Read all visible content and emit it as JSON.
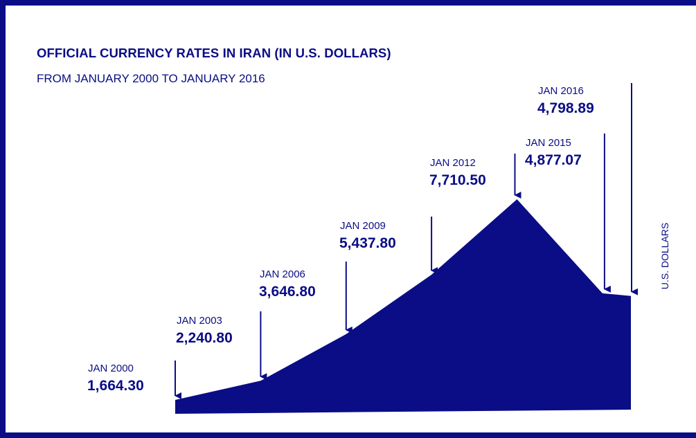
{
  "title": "OFFICIAL CURRENCY RATES IN IRAN (IN U.S. DOLLARS)",
  "subtitle": "FROM JANUARY 2000 TO JANUARY 2016",
  "colors": {
    "fill": "#0a0d85",
    "text": "#0a0d85",
    "border": "#0a0d85"
  },
  "chart_data": {
    "type": "area",
    "title": "OFFICIAL CURRENCY RATES IN IRAN (IN U.S. DOLLARS)",
    "subtitle": "FROM JANUARY 2000 TO JANUARY 2016",
    "ylabel": "U.S. DOLLARS",
    "x": [
      "2000-01",
      "2003-01",
      "2006-01",
      "2009-01",
      "2012-01",
      "2015-01",
      "2016-01"
    ],
    "points": [
      {
        "date": "JAN 2000",
        "value_label": "1,664.30",
        "value": 1664.3
      },
      {
        "date": "JAN 2003",
        "value_label": "2,240.80",
        "value": 2240.8
      },
      {
        "date": "JAN 2006",
        "value_label": "3,646.80",
        "value": 3646.8
      },
      {
        "date": "JAN 2009",
        "value_label": "5,437.80",
        "value": 5437.8
      },
      {
        "date": "JAN 2012",
        "value_label": "7,710.50",
        "value": 7710.5
      },
      {
        "date": "JAN 2015",
        "value_label": "4,877.07",
        "value": 4877.07
      },
      {
        "date": "JAN 2016",
        "value_label": "4,798.89",
        "value": 4798.89
      }
    ],
    "grid": false,
    "legend": "none"
  }
}
